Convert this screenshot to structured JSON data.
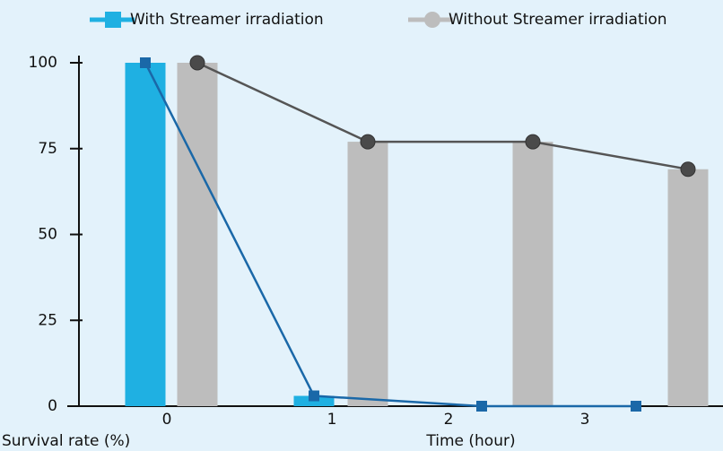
{
  "chart_data": {
    "type": "bar_line",
    "categories": [
      "0",
      "1",
      "2",
      "3"
    ],
    "series": [
      {
        "name": "With Streamer irradiation",
        "color": "#1fb0e2",
        "line_color": "#1a68a8",
        "marker": "square",
        "values": [
          100,
          3,
          0,
          0
        ]
      },
      {
        "name": "Without Streamer irradiation",
        "color": "#bdbdbd",
        "line_color": "#555555",
        "marker": "circle",
        "values": [
          100,
          77,
          77,
          69
        ]
      }
    ],
    "ylabel": "Survival rate (%)",
    "xlabel": "Time (hour)",
    "ylim": [
      0,
      100
    ],
    "yticks": [
      0,
      25,
      50,
      75,
      100
    ],
    "legend": "top"
  }
}
